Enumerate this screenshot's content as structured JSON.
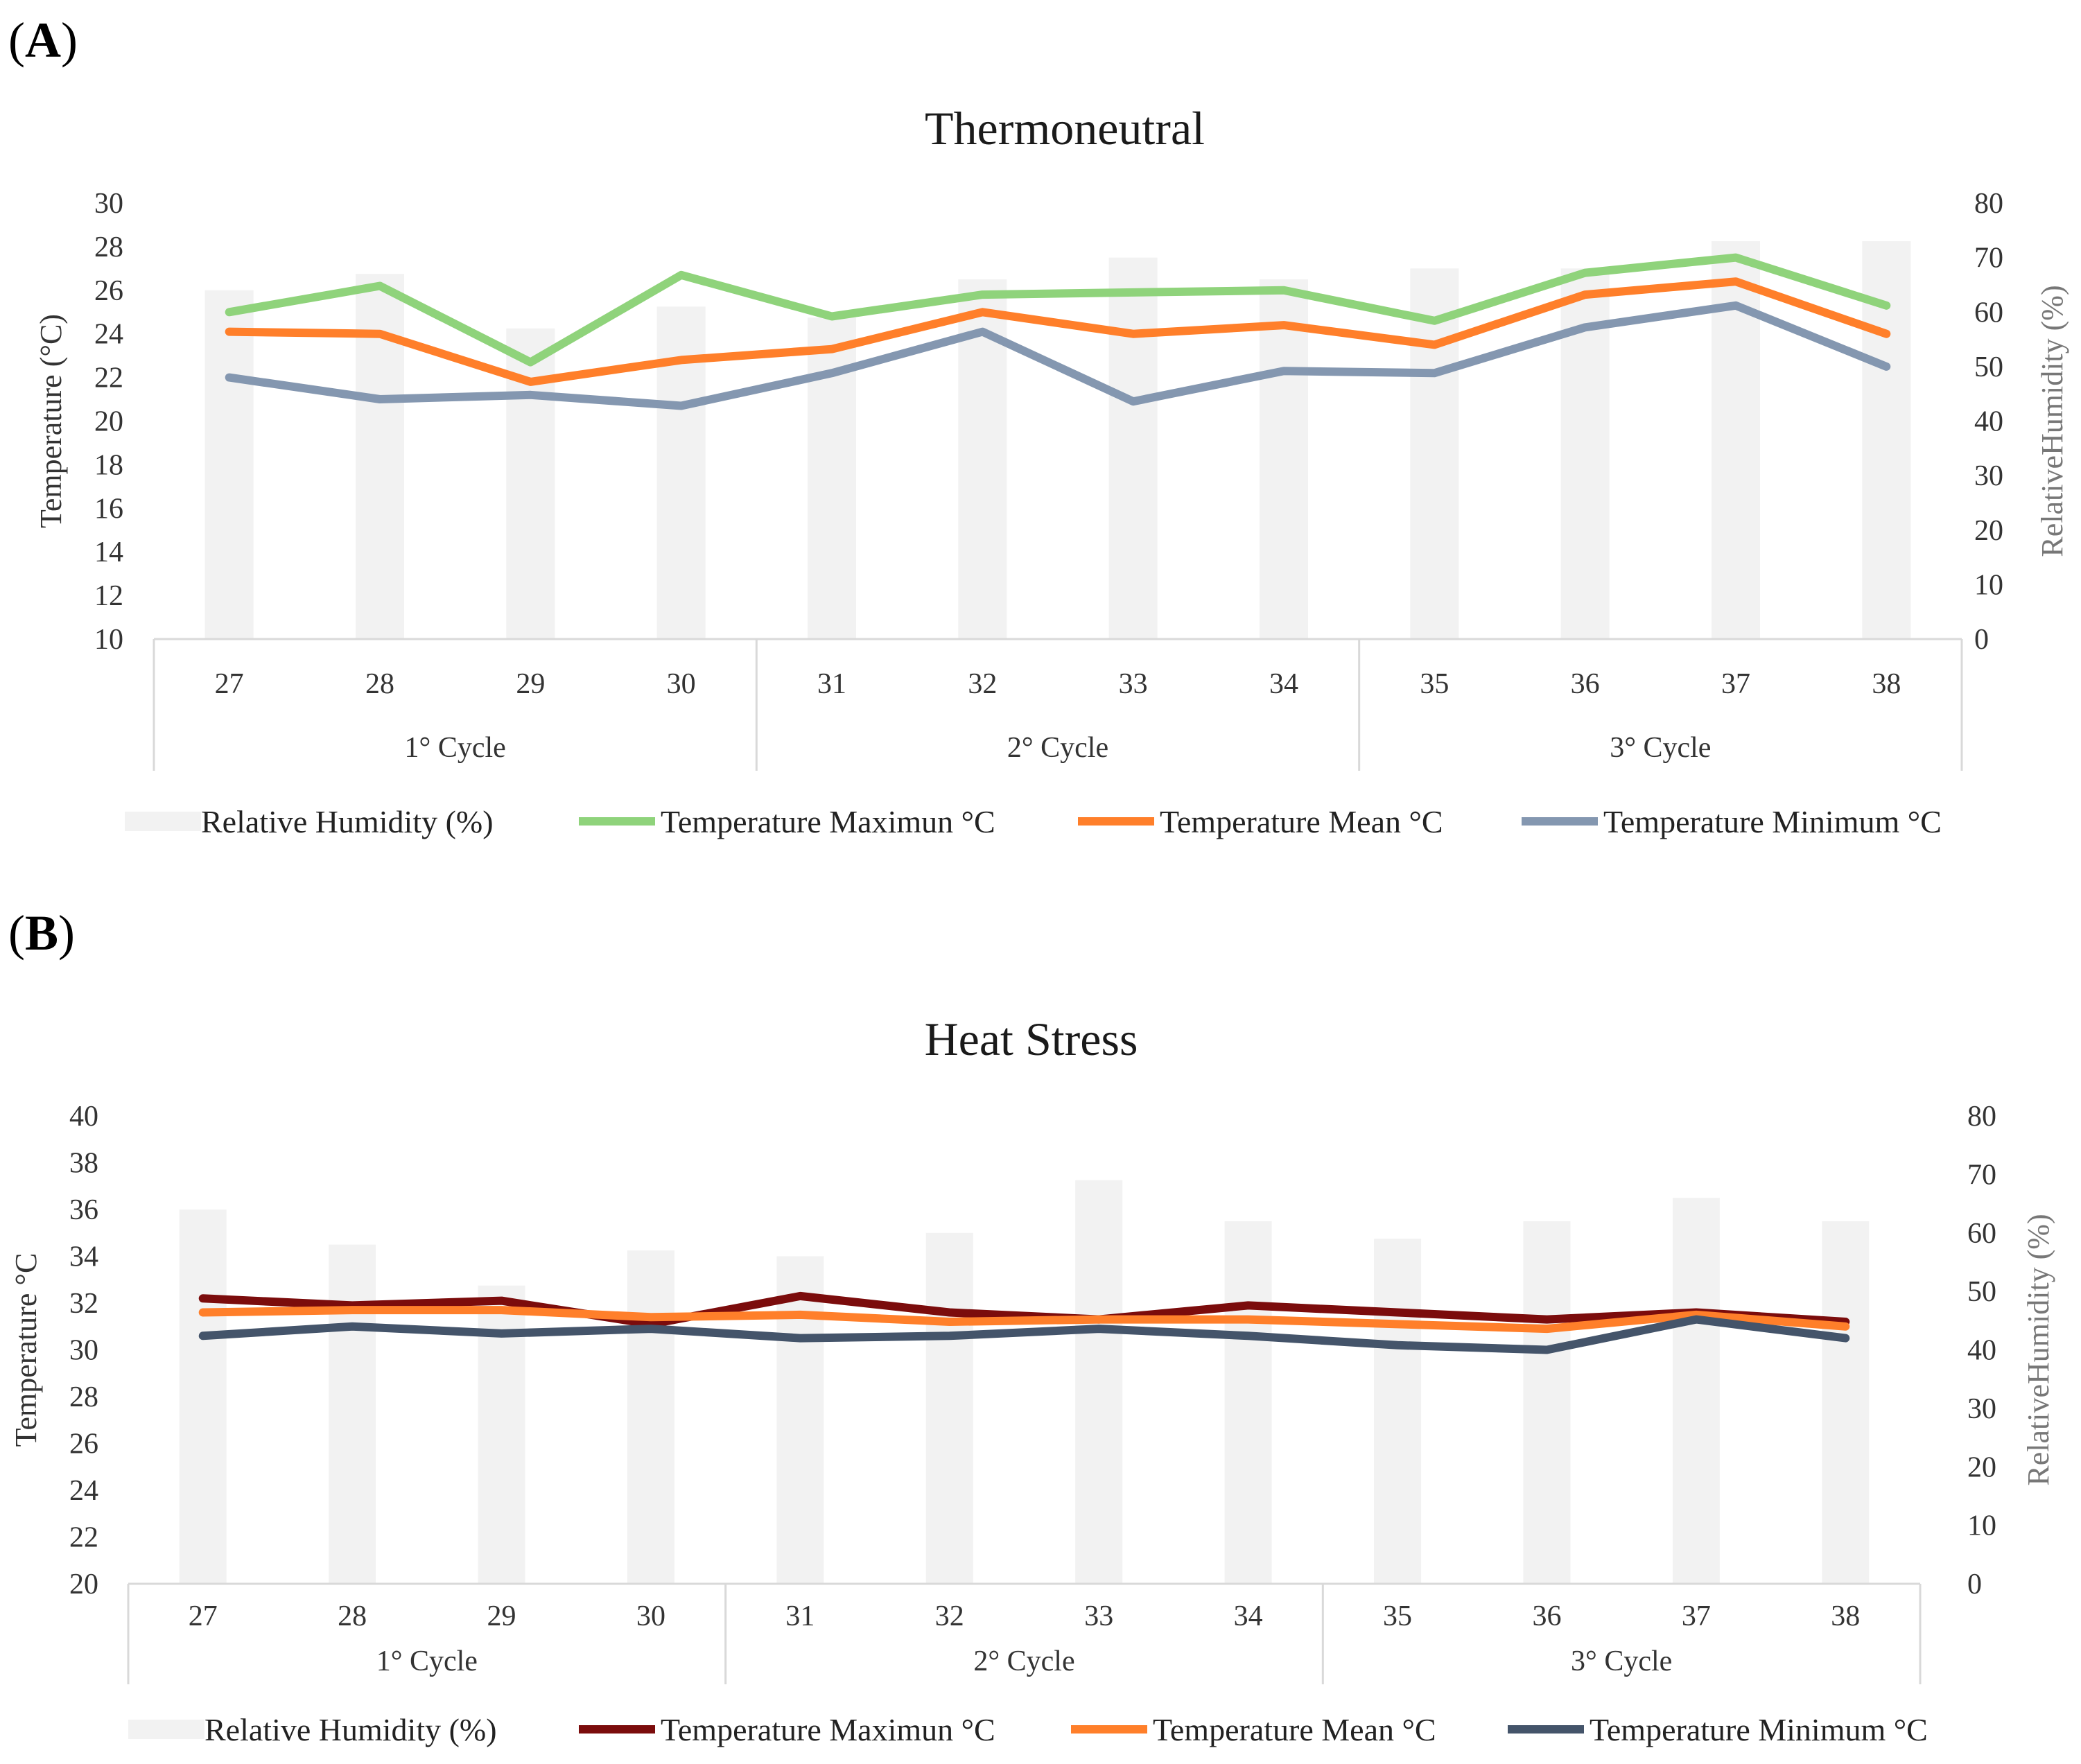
{
  "chart_data": [
    {
      "panel": "A",
      "type": "bar+line",
      "title": "Thermoneutral",
      "ylabel": "Temperature (°C)",
      "y2label": "RelativeHumidity (%)",
      "ylim": [
        10,
        30
      ],
      "yticks": [
        10,
        12,
        14,
        16,
        18,
        20,
        22,
        24,
        26,
        28,
        30
      ],
      "y2lim": [
        0,
        80
      ],
      "y2ticks": [
        0,
        10,
        20,
        30,
        40,
        50,
        60,
        70,
        80
      ],
      "categories": [
        "27",
        "28",
        "29",
        "30",
        "31",
        "32",
        "33",
        "34",
        "35",
        "36",
        "37",
        "38"
      ],
      "groups": [
        {
          "label": "1° Cycle",
          "span": 4
        },
        {
          "label": "2° Cycle",
          "span": 4
        },
        {
          "label": "3° Cycle",
          "span": 4
        }
      ],
      "bars": {
        "name": "Relative Humidity (%)",
        "color": "#f2f2f2",
        "values": [
          64,
          67,
          57,
          61,
          59,
          66,
          70,
          66,
          68,
          68,
          73,
          73
        ]
      },
      "series": [
        {
          "name": "Temperature Maximun °C",
          "color": "#8fd37b",
          "values": [
            25.0,
            26.2,
            22.7,
            26.7,
            24.8,
            25.8,
            25.9,
            26.0,
            24.6,
            26.8,
            27.5,
            25.3
          ]
        },
        {
          "name": "Temperature Mean °C",
          "color": "#ff7f2a",
          "values": [
            24.1,
            24.0,
            21.8,
            22.8,
            23.3,
            25.0,
            24.0,
            24.4,
            23.5,
            25.8,
            26.4,
            24.0
          ]
        },
        {
          "name": "Temperature Minimum °C",
          "color": "#8497b0",
          "values": [
            22.0,
            21.0,
            21.2,
            20.7,
            22.2,
            24.1,
            20.9,
            22.3,
            22.2,
            24.3,
            25.3,
            22.5
          ]
        }
      ],
      "legend": "bottom"
    },
    {
      "panel": "B",
      "type": "bar+line",
      "title": "Heat Stress",
      "ylabel": "Temperature °C",
      "y2label": "RelativeHumidity (%)",
      "ylim": [
        20,
        40
      ],
      "yticks": [
        20,
        22,
        24,
        26,
        28,
        30,
        32,
        34,
        36,
        38,
        40
      ],
      "y2lim": [
        0,
        80
      ],
      "y2ticks": [
        0,
        10,
        20,
        30,
        40,
        50,
        60,
        70,
        80
      ],
      "categories": [
        "27",
        "28",
        "29",
        "30",
        "31",
        "32",
        "33",
        "34",
        "35",
        "36",
        "37",
        "38"
      ],
      "groups": [
        {
          "label": "1° Cycle",
          "span": 4
        },
        {
          "label": "2° Cycle",
          "span": 4
        },
        {
          "label": "3° Cycle",
          "span": 4
        }
      ],
      "bars": {
        "name": "Relative Humidity (%)",
        "color": "#f2f2f2",
        "values": [
          64,
          58,
          51,
          57,
          56,
          60,
          69,
          62,
          59,
          62,
          66,
          62
        ]
      },
      "series": [
        {
          "name": "Temperature Maximun °C",
          "color": "#7b0c0c",
          "values": [
            32.2,
            31.9,
            32.1,
            31.1,
            32.3,
            31.6,
            31.3,
            31.9,
            31.6,
            31.3,
            31.6,
            31.2
          ]
        },
        {
          "name": "Temperature Mean °C",
          "color": "#ff7f2a",
          "values": [
            31.6,
            31.7,
            31.7,
            31.4,
            31.5,
            31.2,
            31.3,
            31.3,
            31.1,
            30.9,
            31.5,
            31.0
          ]
        },
        {
          "name": "Temperature Minimum °C",
          "color": "#44546a",
          "values": [
            30.6,
            31.0,
            30.7,
            30.9,
            30.5,
            30.6,
            30.9,
            30.6,
            30.2,
            30.0,
            31.3,
            30.5
          ]
        }
      ],
      "legend": "bottom"
    }
  ],
  "panel_labels": [
    "(A)",
    "(B)"
  ],
  "colors": {
    "axis_text": "#333333",
    "rh_axis_text": "#777777",
    "grid_line": "#d9d9d9"
  }
}
